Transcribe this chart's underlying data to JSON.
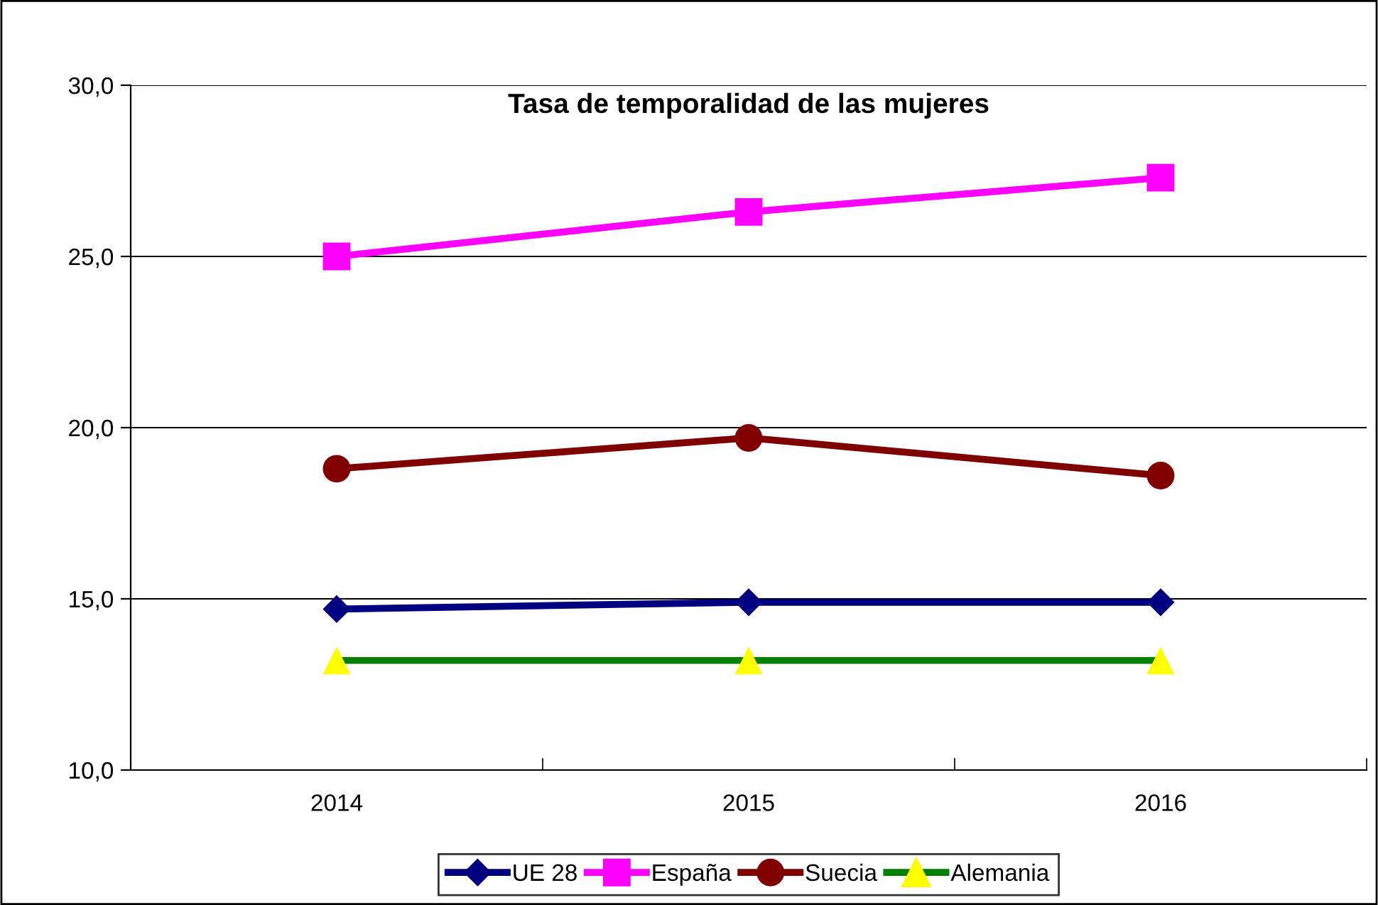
{
  "chart_data": {
    "type": "line",
    "title": "Tasa de temporalidad de las mujeres",
    "categories": [
      "2014",
      "2015",
      "2016"
    ],
    "series": [
      {
        "name": "UE 28",
        "color": "#000080",
        "marker": "diamond",
        "values": [
          14.7,
          14.9,
          14.9
        ]
      },
      {
        "name": "España",
        "color": "#ff00ff",
        "marker": "square",
        "values": [
          25.0,
          26.3,
          27.3
        ]
      },
      {
        "name": "Suecia",
        "color": "#800000",
        "marker": "circle",
        "values": [
          18.8,
          19.7,
          18.6
        ]
      },
      {
        "name": "Alemania",
        "color": "#008000",
        "marker": "triangle",
        "colors": [
          "#ffff00",
          "#ffff00",
          "#ffff00"
        ],
        "values": [
          13.2,
          13.2,
          13.2
        ]
      }
    ],
    "ylim": [
      10,
      30
    ],
    "yticks": [
      {
        "value": 10,
        "label": "10,0"
      },
      {
        "value": 15,
        "label": "15,0"
      },
      {
        "value": 20,
        "label": "20,0"
      },
      {
        "value": 25,
        "label": "25,0"
      },
      {
        "value": 30,
        "label": "30,0"
      }
    ],
    "grid": "y",
    "legend": "bottom",
    "line_style": "solid"
  }
}
